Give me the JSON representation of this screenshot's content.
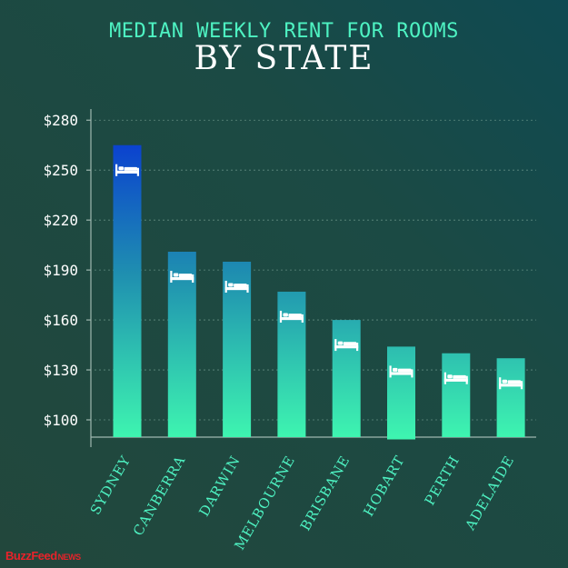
{
  "header": {
    "line1": "MEDIAN WEEKLY RENT FOR ROOMS",
    "line2": "BY STATE"
  },
  "brand": {
    "name": "BuzzFeed",
    "suffix": "NEWS"
  },
  "chart_data": {
    "type": "bar",
    "title": "MEDIAN WEEKLY RENT FOR ROOMS BY STATE",
    "xlabel": "",
    "ylabel": "",
    "categories": [
      "SYDNEY",
      "CANBERRA",
      "DARWIN",
      "MELBOURNE",
      "BRISBANE",
      "HOBART",
      "PERTH",
      "ADELAIDE"
    ],
    "values": [
      265,
      201,
      195,
      177,
      160,
      144,
      140,
      137
    ],
    "bar_baseline": 89,
    "ylim": [
      89,
      285
    ],
    "yticks": [
      100,
      130,
      160,
      190,
      220,
      250,
      280
    ],
    "ytick_labels": [
      "$100",
      "$130",
      "$160",
      "$190",
      "$220",
      "$250",
      "$280"
    ],
    "grid": true,
    "bar_icon": "bed-icon",
    "colors": {
      "bar_top": "#0a3fd0",
      "bar_mid": "#1f8fb0",
      "bar_bottom": "#3ef5b0",
      "axis": "#9fb8b0",
      "tick_text": "#ffffff",
      "category_text": "#4ef2c2",
      "grid": "#7fa89a"
    }
  }
}
